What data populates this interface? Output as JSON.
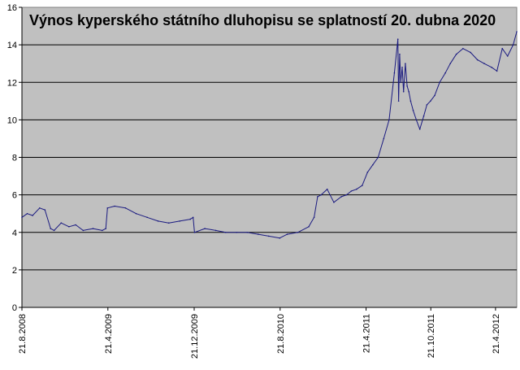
{
  "chart_data": {
    "type": "line",
    "title": "Výnos kyperského státního dluhopisu se splatností 20. dubna 2020",
    "xlabel": "",
    "ylabel": "",
    "ylim": [
      0,
      16
    ],
    "yticks": [
      0,
      2,
      4,
      6,
      8,
      10,
      12,
      14,
      16
    ],
    "xlim": [
      "2008-08-21",
      "2012-06-20"
    ],
    "x_tick_labels": [
      "21.8.2008",
      "21.4.2009",
      "21.12.2009",
      "21.8.2010",
      "21.4.2011",
      "21.10.2011",
      "21.4.2012"
    ],
    "x_tick_dates": [
      "2008-08-21",
      "2009-04-21",
      "2009-12-21",
      "2010-08-21",
      "2011-04-21",
      "2011-10-21",
      "2012-04-21"
    ],
    "grid": true,
    "legend": "none",
    "colors": {
      "plot_background": "#c0c0c0",
      "line": "#1a1a80",
      "grid": "#000000"
    },
    "series": [
      {
        "x": [
          "2008-08-21",
          "2008-09-05",
          "2008-09-20",
          "2008-10-10",
          "2008-10-25",
          "2008-11-10",
          "2008-11-20",
          "2008-12-10",
          "2009-01-01",
          "2009-01-20",
          "2009-02-10",
          "2009-03-10",
          "2009-04-05",
          "2009-04-15",
          "2009-04-20",
          "2009-05-10",
          "2009-06-10",
          "2009-07-10",
          "2009-08-10",
          "2009-09-10",
          "2009-10-10",
          "2009-11-10",
          "2009-12-10",
          "2009-12-18",
          "2009-12-22",
          "2010-01-20",
          "2010-02-20",
          "2010-03-20",
          "2010-04-20",
          "2010-05-20",
          "2010-06-20",
          "2010-07-20",
          "2010-08-20",
          "2010-09-10",
          "2010-10-10",
          "2010-11-10",
          "2010-11-25",
          "2010-12-05",
          "2010-12-15",
          "2011-01-01",
          "2011-01-20",
          "2011-02-10",
          "2011-02-25",
          "2011-03-10",
          "2011-03-25",
          "2011-04-10",
          "2011-04-25",
          "2011-05-10",
          "2011-05-25",
          "2011-06-10",
          "2011-06-25",
          "2011-07-10",
          "2011-07-20",
          "2011-07-22",
          "2011-07-25",
          "2011-07-28",
          "2011-08-01",
          "2011-08-05",
          "2011-08-10",
          "2011-08-15",
          "2011-08-20",
          "2011-08-25",
          "2011-09-01",
          "2011-09-10",
          "2011-09-20",
          "2011-10-01",
          "2011-10-10",
          "2011-10-20",
          "2011-11-01",
          "2011-11-15",
          "2011-12-01",
          "2011-12-15",
          "2012-01-01",
          "2012-01-20",
          "2012-02-10",
          "2012-03-01",
          "2012-03-20",
          "2012-04-10",
          "2012-04-25",
          "2012-05-10",
          "2012-05-25",
          "2012-06-10",
          "2012-06-20"
        ],
        "y": [
          4.8,
          5.0,
          4.9,
          5.3,
          5.2,
          4.2,
          4.1,
          4.5,
          4.3,
          4.4,
          4.1,
          4.2,
          4.1,
          4.2,
          5.3,
          5.4,
          5.3,
          5.0,
          4.8,
          4.6,
          4.5,
          4.6,
          4.7,
          4.8,
          4.0,
          4.2,
          4.1,
          4.0,
          4.0,
          4.0,
          3.9,
          3.8,
          3.7,
          3.9,
          4.0,
          4.3,
          4.8,
          5.9,
          6.0,
          6.3,
          5.6,
          5.9,
          6.0,
          6.2,
          6.3,
          6.5,
          7.2,
          7.6,
          8.0,
          9.0,
          10.0,
          12.5,
          14.3,
          11.0,
          13.5,
          12.0,
          12.8,
          11.5,
          13.0,
          11.8,
          11.5,
          11.0,
          10.5,
          10.0,
          9.5,
          10.2,
          10.8,
          11.0,
          11.3,
          12.0,
          12.5,
          13.0,
          13.5,
          13.8,
          13.6,
          13.2,
          13.0,
          12.8,
          12.6,
          13.8,
          13.4,
          14.0,
          14.7
        ]
      }
    ]
  }
}
